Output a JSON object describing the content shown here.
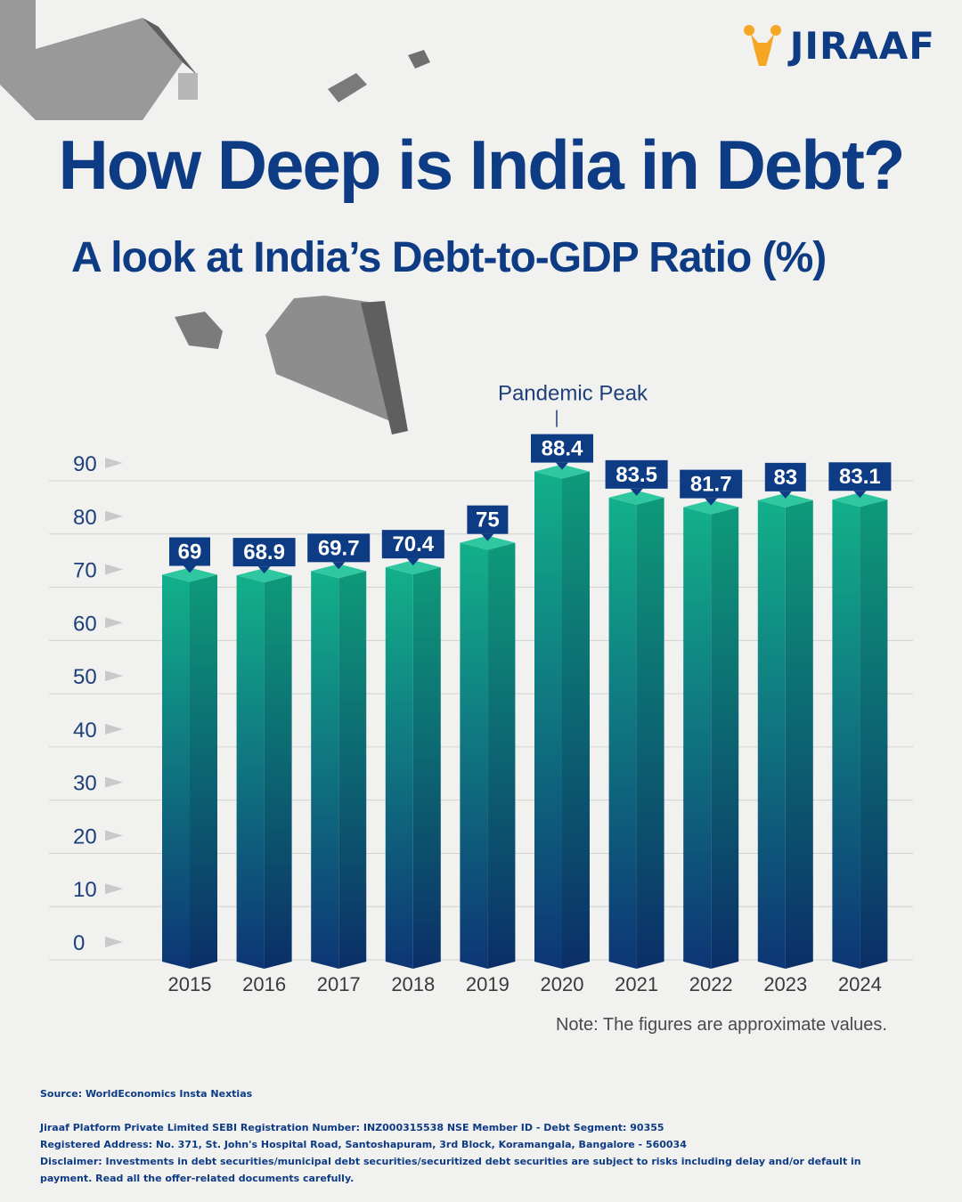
{
  "brand": {
    "name": "JIRAAF",
    "accent": "#f5a623",
    "primary": "#0d3b84"
  },
  "title": "How Deep is India in Debt?",
  "subtitle": "A look at India’s Debt-to-GDP Ratio (%)",
  "chart_data": {
    "type": "bar",
    "categories": [
      "2015",
      "2016",
      "2017",
      "2018",
      "2019",
      "2020",
      "2021",
      "2022",
      "2023",
      "2024"
    ],
    "values": [
      69,
      68.9,
      69.7,
      70.4,
      75,
      88.4,
      83.5,
      81.7,
      83,
      83.1
    ],
    "data_labels": [
      "69",
      "68.9",
      "69.7",
      "70.4",
      "75",
      "88.4",
      "83.5",
      "81.7",
      "83",
      "83.1"
    ],
    "yticks": [
      "0",
      "10",
      "20",
      "30",
      "40",
      "50",
      "60",
      "70",
      "80",
      "90"
    ],
    "ylim": [
      0,
      90
    ],
    "grid": true,
    "annotation": {
      "text": "Pandemic Peak",
      "category": "2020"
    },
    "colors": {
      "bar_top": "#12b08a",
      "bar_bottom": "#0d3675",
      "label_bg": "#0d3b84"
    }
  },
  "note": "Note: The figures are approximate values.",
  "footer": {
    "source": "Source: WorldEconomics Insta Nextias",
    "lines": [
      "Jiraaf Platform Private Limited SEBI Registration Number: INZ000315538 NSE Member ID - Debt Segment: 90355",
      "Registered Address: No. 371, St. John's Hospital Road, Santoshapuram, 3rd Block, Koramangala, Bangalore - 560034",
      "Disclaimer: Investments in debt securities/municipal debt securities/securitized debt securities are subject to risks including delay and/or default in payment. Read all the offer-related documents carefully."
    ]
  }
}
